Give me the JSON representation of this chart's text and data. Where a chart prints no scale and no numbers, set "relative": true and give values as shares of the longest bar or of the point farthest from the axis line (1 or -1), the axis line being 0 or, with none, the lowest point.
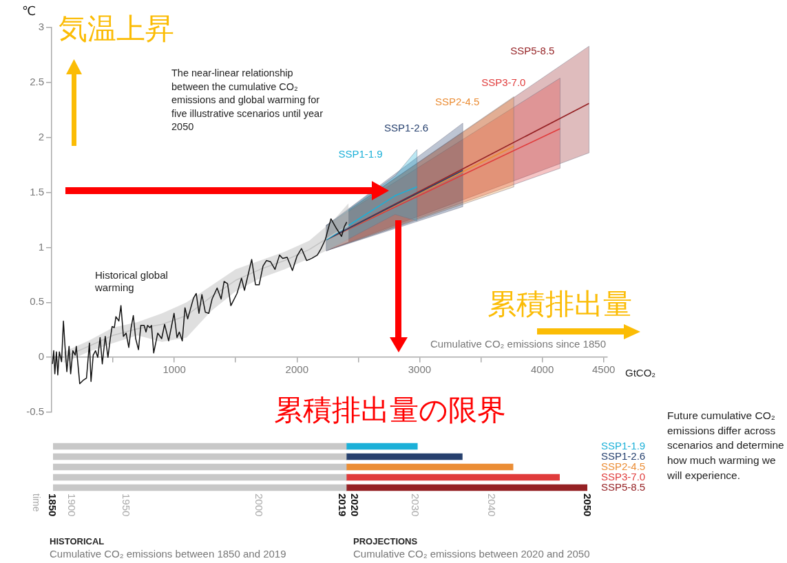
{
  "chart_data": [
    {
      "type": "line",
      "ylabel": "℃",
      "xlabel": "Cumulative CO₂ emissions since 1850",
      "annotations": [
        "気温上昇",
        "The near-linear relationship between the cumulative CO₂ emissions and global warming for five illustrative scenarios until year 2050",
        "累積排出量",
        "累積排出量の限界",
        "GtCO₂"
      ],
      "xlim": [
        0,
        4530
      ],
      "ylim": [
        -0.5,
        3
      ],
      "xticks": [
        {
          "value": 500,
          "label": null
        },
        1000,
        {
          "value": 1500,
          "label": null
        },
        2000,
        {
          "value": 2500,
          "label": null
        },
        3000,
        {
          "value": 3500,
          "label": null
        },
        4000,
        4500
      ],
      "yticks": [
        -0.5,
        0,
        0.5,
        1,
        1.5,
        2,
        2.5,
        3
      ],
      "grid": false,
      "legend": false,
      "marker": "none",
      "line_style": "solid",
      "series": [
        {
          "name": "Historical global warming",
          "color": "#111111",
          "x": [
            7,
            17,
            26,
            39,
            50,
            63,
            81,
            96,
            109,
            124,
            142,
            155,
            173,
            192,
            201,
            220,
            229,
            256,
            284,
            308,
            321,
            339,
            358,
            376,
            395,
            413,
            437,
            459,
            478,
            493,
            511,
            524,
            548,
            565,
            585,
            607,
            629,
            648,
            666,
            685,
            708,
            727,
            754,
            769,
            782,
            801,
            814,
            832,
            865,
            897,
            921,
            954,
            998,
            1022,
            1041,
            1065,
            1087,
            1109,
            1157,
            1179,
            1201,
            1225,
            1253,
            1281,
            1308,
            1349,
            1382,
            1406,
            1434,
            1461,
            1511,
            1548,
            1572,
            1631,
            1662,
            1692,
            1723,
            1751,
            1784,
            1821,
            1858,
            1884,
            1920,
            1963,
            2000,
            2037,
            2079,
            2120,
            2166,
            2197,
            2231,
            2277,
            2323,
            2363,
            2387,
            2406
          ],
          "values": [
            -0.06,
            0.06,
            -0.15,
            0.05,
            -0.16,
            0.05,
            -0.04,
            0.33,
            0.1,
            -0.13,
            0.1,
            -0.15,
            0.06,
            0.02,
            0.1,
            -0.13,
            -0.24,
            -0.21,
            -0.19,
            0.13,
            -0.22,
            0.02,
            0.06,
            0,
            0.18,
            -0.06,
            0.19,
            0,
            0.17,
            0.28,
            0.27,
            0.37,
            0.33,
            0.47,
            0.19,
            0.22,
            0.09,
            0.27,
            0.38,
            0.17,
            0.07,
            0.29,
            0.29,
            0.23,
            0.29,
            0.27,
            0.29,
            0.04,
            0.22,
            0.17,
            0.3,
            0.15,
            0.4,
            0.18,
            0.23,
            0.15,
            0.45,
            0.35,
            0.54,
            0.58,
            0.4,
            0.57,
            0.41,
            0.4,
            0.53,
            0.63,
            0.53,
            0.69,
            0.67,
            0.47,
            0.58,
            0.72,
            0.61,
            0.89,
            0.66,
            0.66,
            0.83,
            0.88,
            0.87,
            0.8,
            0.93,
            0.9,
            0.91,
            0.79,
            0.92,
            0.99,
            0.88,
            0.9,
            0.93,
            0.99,
            1.07,
            1.26,
            1.17,
            1.1,
            1.19,
            1.23
          ]
        },
        {
          "color": "#c4c4c4",
          "x": [
            100,
            300,
            500,
            700,
            900,
            1100,
            1300,
            1500,
            1700,
            1900,
            2100,
            2300,
            2420
          ],
          "values": [
            0,
            0.1,
            0.2,
            0.26,
            0.3,
            0.38,
            0.55,
            0.7,
            0.8,
            0.88,
            0.98,
            1.12,
            1.2
          ],
          "lower": [
            -0.05,
            0.05,
            0.13,
            0.2,
            0.14,
            0.18,
            0.42,
            0.6,
            0.72,
            0.8,
            0.9,
            1,
            1.05
          ],
          "upper": [
            0.05,
            0.15,
            0.27,
            0.32,
            0.4,
            0.5,
            0.65,
            0.8,
            0.88,
            0.96,
            1.06,
            1.25,
            1.4
          ]
        },
        {
          "name": "SSP1-1.9",
          "color": "#1bb0d8",
          "x": [
            2240,
            2800,
            2979
          ],
          "values": [
            1.07,
            1.47,
            1.55
          ],
          "lower": [
            0.97,
            1.3,
            1.24
          ],
          "upper": [
            1.2,
            1.65,
            1.89
          ]
        },
        {
          "name": "SSP1-2.6",
          "color": "#26406e",
          "x": [
            2240,
            3352
          ],
          "values": [
            1.07,
            1.7
          ],
          "lower": [
            0.97,
            1.37
          ],
          "upper": [
            1.2,
            2.13
          ]
        },
        {
          "name": "SSP2-4.5",
          "color": "#eb8d35",
          "x": [
            2240,
            3768
          ],
          "values": [
            1.07,
            1.92
          ],
          "lower": [
            0.97,
            1.55
          ],
          "upper": [
            1.2,
            2.37
          ]
        },
        {
          "name": "SSP3-7.0",
          "color": "#e03b3b",
          "x": [
            2240,
            4145
          ],
          "values": [
            1.07,
            2.08
          ],
          "lower": [
            0.97,
            1.72
          ],
          "upper": [
            1.2,
            2.54
          ]
        },
        {
          "name": "SSP5-8.5",
          "color": "#952124",
          "x": [
            2240,
            4381
          ],
          "values": [
            1.07,
            2.31
          ],
          "lower": [
            0.97,
            1.86
          ],
          "upper": [
            1.2,
            2.83
          ]
        }
      ]
    },
    {
      "type": "bar",
      "orientation": "horizontal",
      "stacked": true,
      "relative": true,
      "grid": false,
      "legend": false,
      "annotations": [
        "HISTORICAL",
        "Cumulative CO₂ emissions between 1850 and 2019",
        "PROJECTIONS",
        "Cumulative CO₂ emissions between 2020 and 2050",
        "Future cumulative CO₂ emissions differ across scenarios and determine how much warming we will experience.",
        "1850",
        "1900",
        "1950",
        "2000",
        "2019",
        "2020",
        "2030",
        "2040",
        "2050",
        "time"
      ],
      "categories": [
        "SSP1-1.9",
        "SSP1-2.6",
        "SSP2-4.5",
        "SSP3-7.0",
        "SSP5-8.5"
      ],
      "series": [
        {
          "color": "#c8c8c8",
          "values": [
            0.549,
            0.549,
            0.549,
            0.549,
            0.549
          ]
        },
        {
          "colors": [
            "#1bb0d8",
            "#26406e",
            "#eb8d35",
            "#e03b3b",
            "#952124"
          ],
          "values": [
            0.133,
            0.217,
            0.312,
            0.399,
            0.451
          ]
        }
      ]
    }
  ]
}
